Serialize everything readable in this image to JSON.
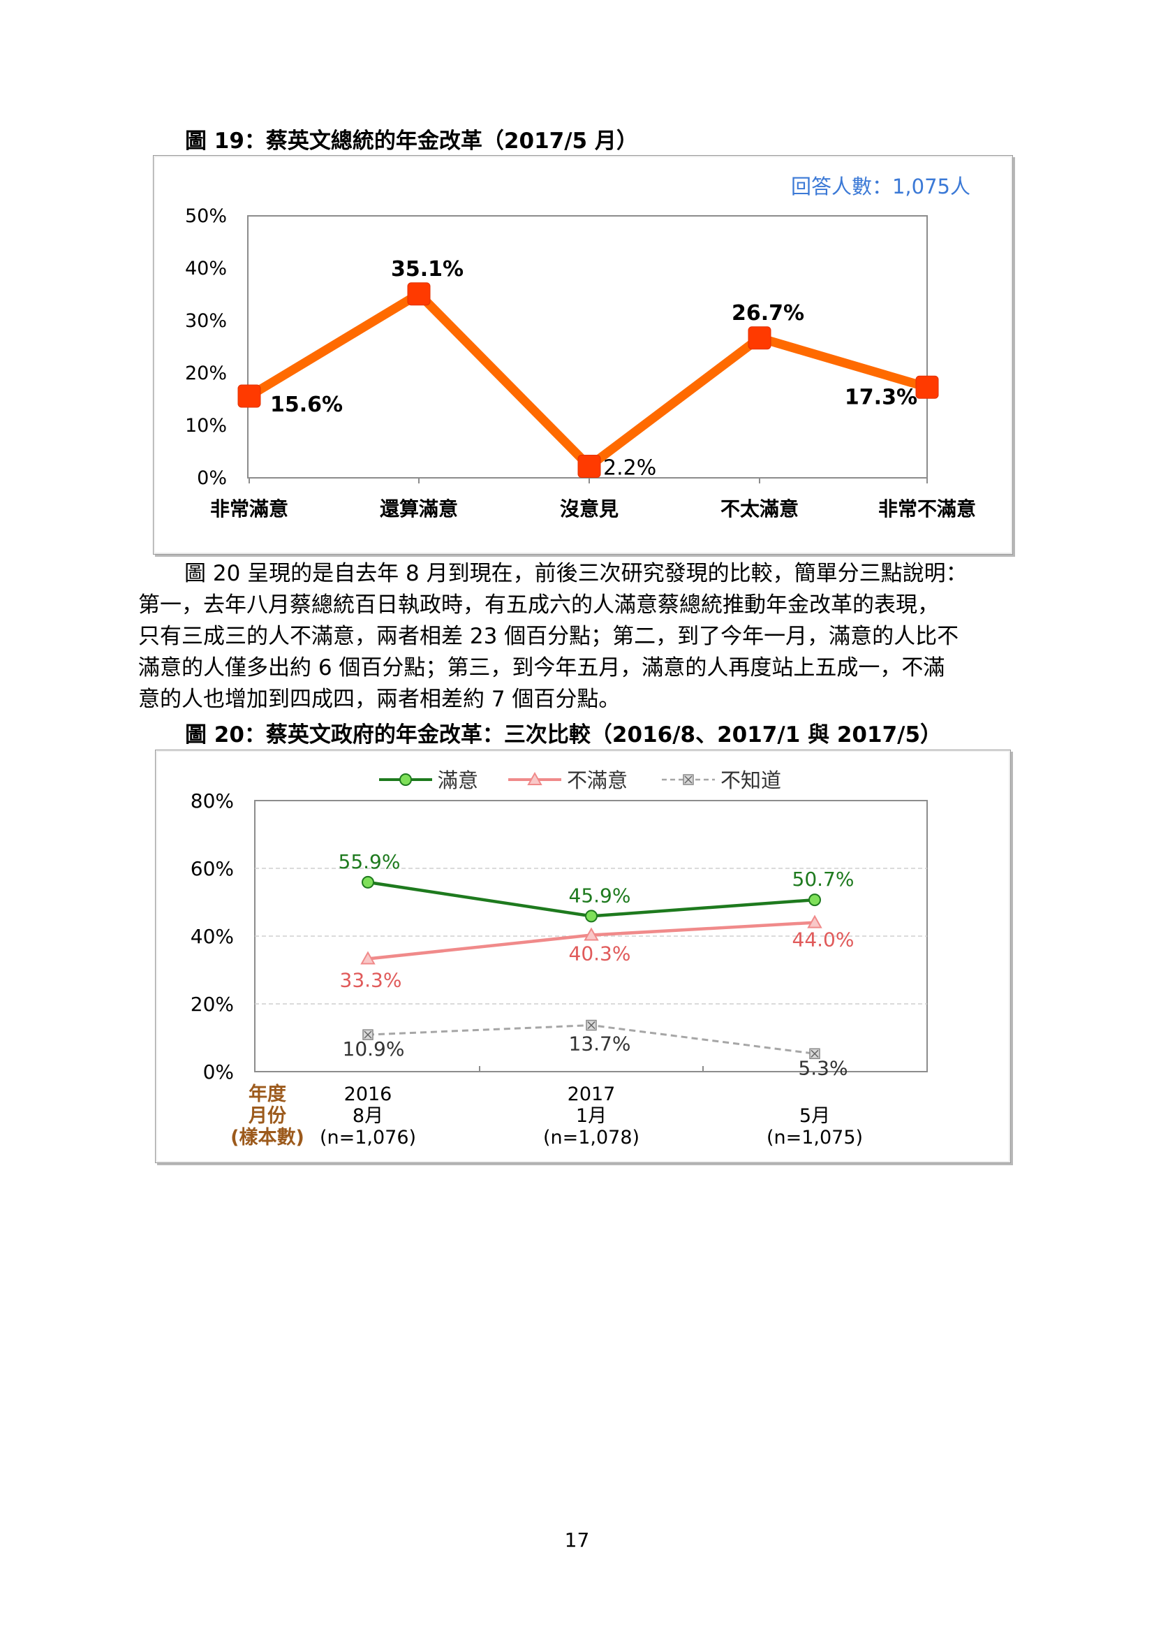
{
  "figure19": {
    "caption": "圖 19：蔡英文總統的年金改革（2017/5 月）",
    "respondents": "回答人數：1,075人",
    "chart_data": {
      "type": "line",
      "categories": [
        "非常滿意",
        "還算滿意",
        "沒意見",
        "不太滿意",
        "非常不滿意"
      ],
      "values": [
        15.6,
        35.1,
        2.2,
        26.7,
        17.3
      ],
      "data_labels": [
        "15.6%",
        "35.1%",
        "2.2%",
        "26.7%",
        "17.3%"
      ],
      "y_ticks": [
        "0%",
        "10%",
        "20%",
        "30%",
        "40%",
        "50%"
      ],
      "ylim": [
        0,
        50
      ],
      "color": "#ff6a00",
      "marker_color": "#ff3a00"
    }
  },
  "paragraph": {
    "lines": [
      "圖 20 呈現的是自去年 8 月到現在，前後三次研究發現的比較，簡單分三點說明：",
      "第一，去年八月蔡總統百日執政時，有五成六的人滿意蔡總統推動年金改革的表現，",
      "只有三成三的人不滿意，兩者相差 23 個百分點；第二，到了今年一月，滿意的人比不",
      "滿意的人僅多出約 6 個百分點；第三，到今年五月，滿意的人再度站上五成一，不滿",
      "意的人也增加到四成四，兩者相差約 7 個百分點。"
    ]
  },
  "figure20": {
    "caption": "圖 20：蔡英文政府的年金改革：三次比較（2016/8、2017/1 與 2017/5）",
    "row_labels": [
      "年度",
      "月份",
      "(樣本數)"
    ],
    "columns": [
      {
        "year": "2016",
        "month": "8月",
        "sample": "(n=1,076)"
      },
      {
        "year": "2017",
        "month": "1月",
        "sample": "(n=1,078)"
      },
      {
        "year": "",
        "month": "5月",
        "sample": "(n=1,075)"
      }
    ],
    "chart_data": {
      "type": "line",
      "categories": [
        "2016 8月",
        "2017 1月",
        "5月"
      ],
      "y_ticks": [
        "0%",
        "20%",
        "40%",
        "60%",
        "80%"
      ],
      "ylim": [
        0,
        80
      ],
      "legend_position": "top",
      "series": [
        {
          "name": "滿意",
          "values": [
            55.9,
            45.9,
            50.7
          ],
          "labels": [
            "55.9%",
            "45.9%",
            "50.7%"
          ],
          "color": "#1e7a1e",
          "marker": "circle",
          "marker_fill": "#7fe05a"
        },
        {
          "name": "不滿意",
          "values": [
            33.3,
            40.3,
            44.0
          ],
          "labels": [
            "33.3%",
            "40.3%",
            "44.0%"
          ],
          "color": "#f08a8a",
          "marker": "triangle",
          "marker_fill": "#f9c8c8"
        },
        {
          "name": "不知道",
          "values": [
            10.9,
            13.7,
            5.3
          ],
          "labels": [
            "10.9%",
            "13.7%",
            "5.3%"
          ],
          "color": "#a6a6a6",
          "marker": "x-square",
          "marker_fill": "#d9d9d9"
        }
      ]
    }
  },
  "page_number": "17"
}
